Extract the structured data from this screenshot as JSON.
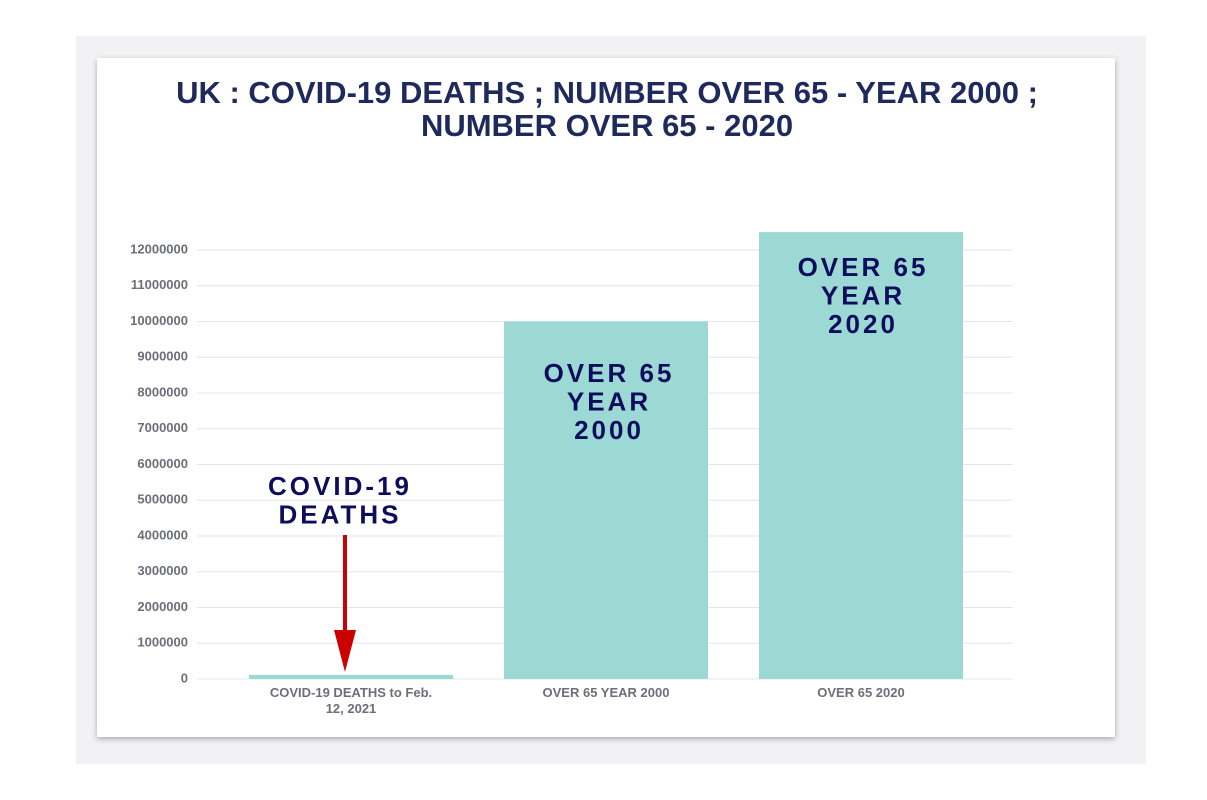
{
  "chart_data": {
    "type": "bar",
    "title": [
      "UK : COVID-19 DEATHS ; NUMBER OVER 65 - YEAR 2000 ;",
      "NUMBER OVER 65 - 2020"
    ],
    "categories": [
      "COVID-19 DEATHS to Feb. 12, 2021",
      "OVER 65 YEAR 2000",
      "OVER 65 2020"
    ],
    "values": [
      115000,
      10000000,
      12500000
    ],
    "color": "#9dd9d4",
    "ylim": [
      0,
      12500000
    ],
    "yticks": [
      0,
      1000000,
      2000000,
      3000000,
      4000000,
      5000000,
      6000000,
      7000000,
      8000000,
      9000000,
      10000000,
      11000000,
      12000000
    ],
    "grid": true,
    "annotations": [
      [
        "COVID-19",
        "DEATHS"
      ],
      [
        "OVER 65",
        "YEAR",
        "2000"
      ],
      [
        "OVER 65",
        "YEAR",
        "2020"
      ]
    ]
  }
}
